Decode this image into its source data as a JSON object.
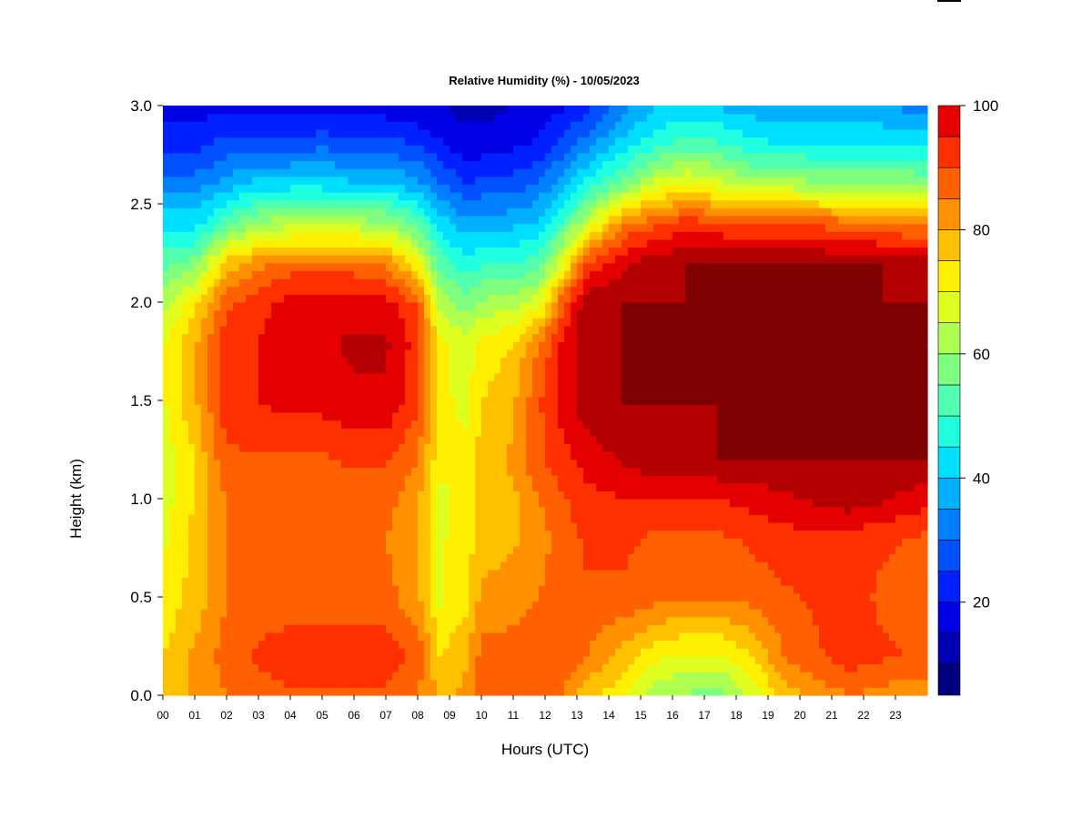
{
  "chart_data": {
    "type": "heatmap",
    "title": "Relative Humidity (%) - 10/05/2023",
    "xlabel": "Hours (UTC)",
    "ylabel": "Height (km)",
    "x_ticks": [
      "00",
      "01",
      "02",
      "03",
      "04",
      "05",
      "06",
      "07",
      "08",
      "09",
      "10",
      "11",
      "12",
      "13",
      "14",
      "15",
      "16",
      "17",
      "18",
      "19",
      "20",
      "21",
      "22",
      "23"
    ],
    "x_range": [
      0,
      24
    ],
    "y_ticks": [
      "0.0",
      "0.5",
      "1.0",
      "1.5",
      "2.0",
      "2.5",
      "3.0"
    ],
    "y_range": [
      0,
      3.0
    ],
    "colorbar": {
      "ticks": [
        "20",
        "40",
        "60",
        "80",
        "100"
      ],
      "range": [
        5,
        100
      ],
      "levels": [
        5,
        10,
        15,
        20,
        25,
        30,
        35,
        40,
        45,
        50,
        55,
        60,
        65,
        70,
        75,
        80,
        85,
        90,
        95,
        100
      ],
      "colors": [
        "#00007f",
        "#0000b2",
        "#0000e5",
        "#0020ff",
        "#0050ff",
        "#0080ff",
        "#00b0ff",
        "#00dfff",
        "#20ffdf",
        "#50ffaf",
        "#7fff7f",
        "#afff50",
        "#dfff20",
        "#ffef00",
        "#ffc000",
        "#ff9000",
        "#ff6000",
        "#ff3000",
        "#e50000",
        "#b20000",
        "#7f0000"
      ]
    },
    "profile_heights_km": [
      0.0,
      0.2,
      0.5,
      0.8,
      1.0,
      1.2,
      1.5,
      1.8,
      2.0,
      2.2,
      2.4,
      2.6,
      2.8,
      3.0
    ],
    "profiles": [
      {
        "hour": 0.0,
        "rh": [
          72,
          70,
          66,
          64,
          62,
          62,
          64,
          64,
          58,
          48,
          38,
          28,
          18,
          12
        ]
      },
      {
        "hour": 1.0,
        "rh": [
          76,
          76,
          72,
          72,
          70,
          70,
          74,
          74,
          68,
          52,
          38,
          28,
          18,
          12
        ]
      },
      {
        "hour": 2.0,
        "rh": [
          80,
          82,
          80,
          80,
          80,
          84,
          88,
          88,
          84,
          72,
          48,
          32,
          22,
          14
        ]
      },
      {
        "hour": 3.0,
        "rh": [
          82,
          86,
          82,
          82,
          82,
          84,
          90,
          90,
          88,
          78,
          56,
          38,
          22,
          14
        ]
      },
      {
        "hour": 4.0,
        "rh": [
          84,
          88,
          82,
          82,
          82,
          84,
          92,
          94,
          92,
          82,
          58,
          38,
          22,
          12
        ]
      },
      {
        "hour": 5.0,
        "rh": [
          84,
          88,
          82,
          80,
          82,
          84,
          92,
          94,
          92,
          82,
          58,
          38,
          24,
          12
        ]
      },
      {
        "hour": 6.0,
        "rh": [
          84,
          88,
          82,
          80,
          82,
          86,
          94,
          96,
          92,
          82,
          58,
          36,
          22,
          12
        ]
      },
      {
        "hour": 7.0,
        "rh": [
          84,
          88,
          82,
          80,
          82,
          86,
          94,
          96,
          92,
          80,
          56,
          36,
          22,
          12
        ]
      },
      {
        "hour": 8.0,
        "rh": [
          80,
          84,
          76,
          76,
          76,
          80,
          86,
          88,
          84,
          66,
          48,
          32,
          20,
          10
        ]
      },
      {
        "hour": 8.7,
        "rh": [
          74,
          70,
          64,
          64,
          64,
          66,
          66,
          66,
          58,
          48,
          38,
          26,
          16,
          10
        ]
      },
      {
        "hour": 9.5,
        "rh": [
          76,
          74,
          68,
          68,
          66,
          66,
          64,
          62,
          52,
          42,
          32,
          20,
          12,
          8
        ]
      },
      {
        "hour": 10.0,
        "rh": [
          82,
          82,
          76,
          72,
          72,
          72,
          70,
          66,
          56,
          44,
          32,
          22,
          12,
          8
        ]
      },
      {
        "hour": 11.0,
        "rh": [
          82,
          82,
          78,
          74,
          74,
          76,
          74,
          70,
          58,
          44,
          34,
          22,
          14,
          10
        ]
      },
      {
        "hour": 11.8,
        "rh": [
          84,
          84,
          80,
          78,
          80,
          84,
          84,
          80,
          62,
          48,
          36,
          26,
          16,
          12
        ]
      },
      {
        "hour": 12.5,
        "rh": [
          80,
          84,
          82,
          82,
          84,
          88,
          92,
          90,
          82,
          62,
          46,
          32,
          22,
          14
        ]
      },
      {
        "hour": 13.3,
        "rh": [
          72,
          80,
          84,
          86,
          88,
          92,
          98,
          100,
          98,
          86,
          60,
          42,
          28,
          18
        ]
      },
      {
        "hour": 14.5,
        "rh": [
          66,
          72,
          84,
          86,
          90,
          96,
          100,
          100,
          100,
          94,
          80,
          52,
          38,
          28
        ]
      },
      {
        "hour": 15.5,
        "rh": [
          56,
          66,
          82,
          84,
          90,
          98,
          100,
          100,
          100,
          98,
          84,
          62,
          44,
          34
        ]
      },
      {
        "hour": 16.5,
        "rh": [
          54,
          64,
          80,
          84,
          90,
          98,
          100,
          100,
          100,
          100,
          88,
          66,
          48,
          36
        ]
      },
      {
        "hour": 17.5,
        "rh": [
          52,
          64,
          80,
          84,
          90,
          100,
          100,
          100,
          100,
          100,
          86,
          62,
          46,
          34
        ]
      },
      {
        "hour": 18.5,
        "rh": [
          62,
          70,
          82,
          86,
          92,
          100,
          100,
          100,
          100,
          100,
          84,
          58,
          42,
          32
        ]
      },
      {
        "hour": 19.5,
        "rh": [
          72,
          80,
          84,
          88,
          94,
          100,
          100,
          100,
          100,
          100,
          84,
          58,
          40,
          30
        ]
      },
      {
        "hour": 20.5,
        "rh": [
          76,
          84,
          86,
          88,
          96,
          100,
          100,
          100,
          100,
          100,
          84,
          56,
          40,
          30
        ]
      },
      {
        "hour": 21.5,
        "rh": [
          80,
          88,
          88,
          88,
          98,
          100,
          100,
          100,
          100,
          100,
          82,
          56,
          40,
          30
        ]
      },
      {
        "hour": 22.5,
        "rh": [
          78,
          86,
          84,
          86,
          96,
          100,
          100,
          100,
          100,
          100,
          80,
          56,
          40,
          30
        ]
      },
      {
        "hour": 23.9,
        "rh": [
          76,
          84,
          82,
          84,
          92,
          100,
          100,
          100,
          100,
          98,
          78,
          54,
          40,
          28
        ]
      }
    ]
  }
}
